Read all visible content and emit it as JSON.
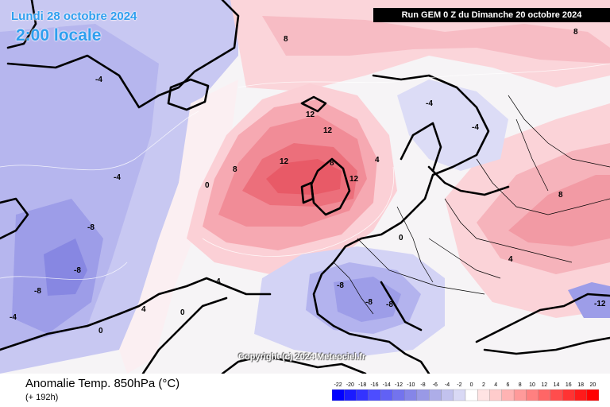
{
  "header": {
    "date": "Lundi 28 octobre 2024",
    "local_time": "2:00 locale",
    "run_info": "Run GEM 0 Z du Dimanche 20 octobre 2024"
  },
  "map": {
    "copyright": "Copyright (c) 2024 Meteociel.fr",
    "contour_labels": [
      {
        "text": "12"
      },
      {
        "text": "12"
      },
      {
        "text": "12"
      },
      {
        "text": "12"
      },
      {
        "text": "8"
      },
      {
        "text": "8"
      },
      {
        "text": "8"
      },
      {
        "text": "8"
      },
      {
        "text": "8"
      },
      {
        "text": "4"
      },
      {
        "text": "4"
      },
      {
        "text": "4"
      },
      {
        "text": "4"
      },
      {
        "text": "0"
      },
      {
        "text": "0"
      },
      {
        "text": "0"
      },
      {
        "text": "0"
      },
      {
        "text": "-4"
      },
      {
        "text": "-4"
      },
      {
        "text": "-4"
      },
      {
        "text": "-4"
      },
      {
        "text": "-4"
      },
      {
        "text": "-8"
      },
      {
        "text": "-8"
      },
      {
        "text": "-8"
      },
      {
        "text": "-8"
      },
      {
        "text": "-8"
      },
      {
        "text": "-8"
      },
      {
        "text": "-12"
      }
    ]
  },
  "footer": {
    "parameter": "Anomalie Temp. 850hPa (°C)",
    "forecast_step": "(+ 192h)"
  },
  "legend": {
    "ticks": [
      "-22",
      "-20",
      "-18",
      "-16",
      "-14",
      "-12",
      "-10",
      "-8",
      "-6",
      "-4",
      "-2",
      "0",
      "2",
      "4",
      "6",
      "8",
      "10",
      "12",
      "14",
      "16",
      "18",
      "20"
    ],
    "colors": [
      "#0000ff",
      "#1a1aff",
      "#3333ff",
      "#4d4dff",
      "#6161f5",
      "#7373ee",
      "#8585e8",
      "#9999e6",
      "#adade8",
      "#c2c2ee",
      "#d9d9f5",
      "#ffffff",
      "#ffe3e3",
      "#ffcccc",
      "#ffb3b3",
      "#ff9a9a",
      "#ff8080",
      "#ff6666",
      "#ff4d4d",
      "#ff3333",
      "#ff1a1a",
      "#ff0000"
    ]
  },
  "colors": {
    "cold_background": "#aaaaf0",
    "warm_core": "#ff6b6b",
    "label_blue": "#2f9fef"
  }
}
